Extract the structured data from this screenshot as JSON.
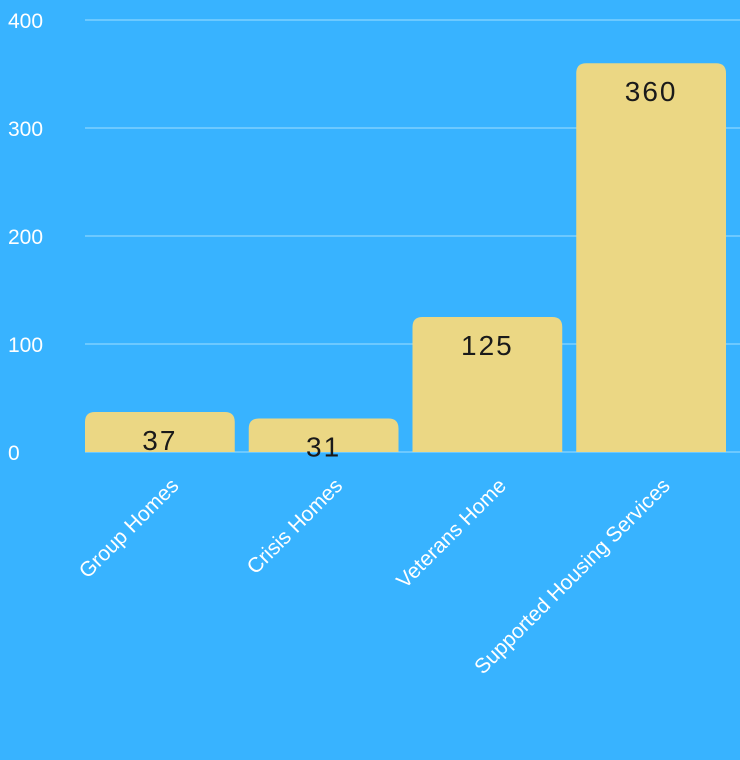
{
  "chart_data": {
    "type": "bar",
    "categories": [
      "Group Homes",
      "Crisis Homes",
      "Veterans Home",
      "Supported Housing Services"
    ],
    "values": [
      37,
      31,
      125,
      360
    ],
    "data_labels": [
      "37",
      "31",
      "125",
      "360"
    ],
    "yticks": [
      0,
      100,
      200,
      300,
      400
    ],
    "ytick_labels": [
      "0",
      "100",
      "200",
      "300",
      "400"
    ],
    "ylim": [
      0,
      400
    ],
    "grid": true,
    "legend": "none",
    "colors": {
      "background": "#38b3ff",
      "bar": "#ebd784",
      "gridline": "#6cc9ff",
      "axis_text": "#ffffff",
      "data_label": "#1a1a1a"
    }
  }
}
